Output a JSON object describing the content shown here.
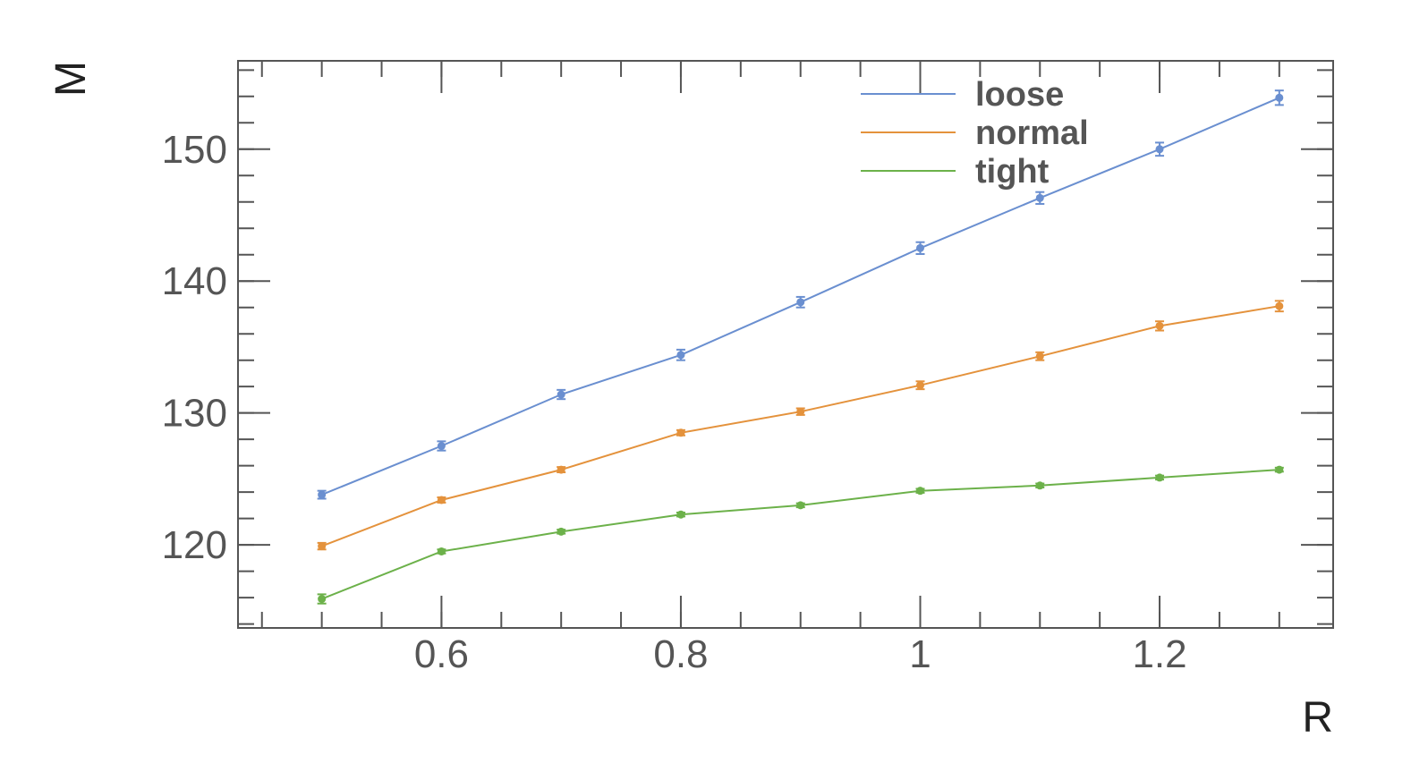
{
  "chart_data": {
    "type": "line",
    "xlabel": "R",
    "ylabel": "M",
    "xlim": [
      0.43,
      1.345
    ],
    "ylim": [
      113.7,
      156.7
    ],
    "x_ticks": [
      0.6,
      0.8,
      1.0,
      1.2
    ],
    "x_tick_labels": [
      "0.6",
      "0.8",
      "1",
      "1.2"
    ],
    "y_ticks": [
      120,
      130,
      140,
      150
    ],
    "y_tick_labels": [
      "120",
      "130",
      "140",
      "150"
    ],
    "legend_position": "top-right",
    "grid": false,
    "x": [
      0.5,
      0.6,
      0.7,
      0.8,
      0.9,
      1.0,
      1.1,
      1.2,
      1.3
    ],
    "series": [
      {
        "name": "loose",
        "color": "#6a8fd0",
        "values": [
          123.8,
          127.5,
          131.4,
          134.4,
          138.4,
          142.5,
          146.3,
          150.0,
          153.9
        ],
        "errors": [
          0.3,
          0.35,
          0.35,
          0.4,
          0.4,
          0.45,
          0.45,
          0.5,
          0.55
        ]
      },
      {
        "name": "normal",
        "color": "#e4923c",
        "values": [
          119.9,
          123.4,
          125.7,
          128.5,
          130.1,
          132.1,
          134.3,
          136.6,
          138.1
        ],
        "errors": [
          0.25,
          0.2,
          0.2,
          0.2,
          0.25,
          0.3,
          0.3,
          0.35,
          0.4
        ]
      },
      {
        "name": "tight",
        "color": "#6cb14a",
        "values": [
          115.9,
          119.5,
          121.0,
          122.3,
          123.0,
          124.1,
          124.5,
          125.1,
          125.7
        ],
        "errors": [
          0.35,
          0.15,
          0.15,
          0.15,
          0.15,
          0.15,
          0.15,
          0.15,
          0.15
        ]
      }
    ]
  }
}
